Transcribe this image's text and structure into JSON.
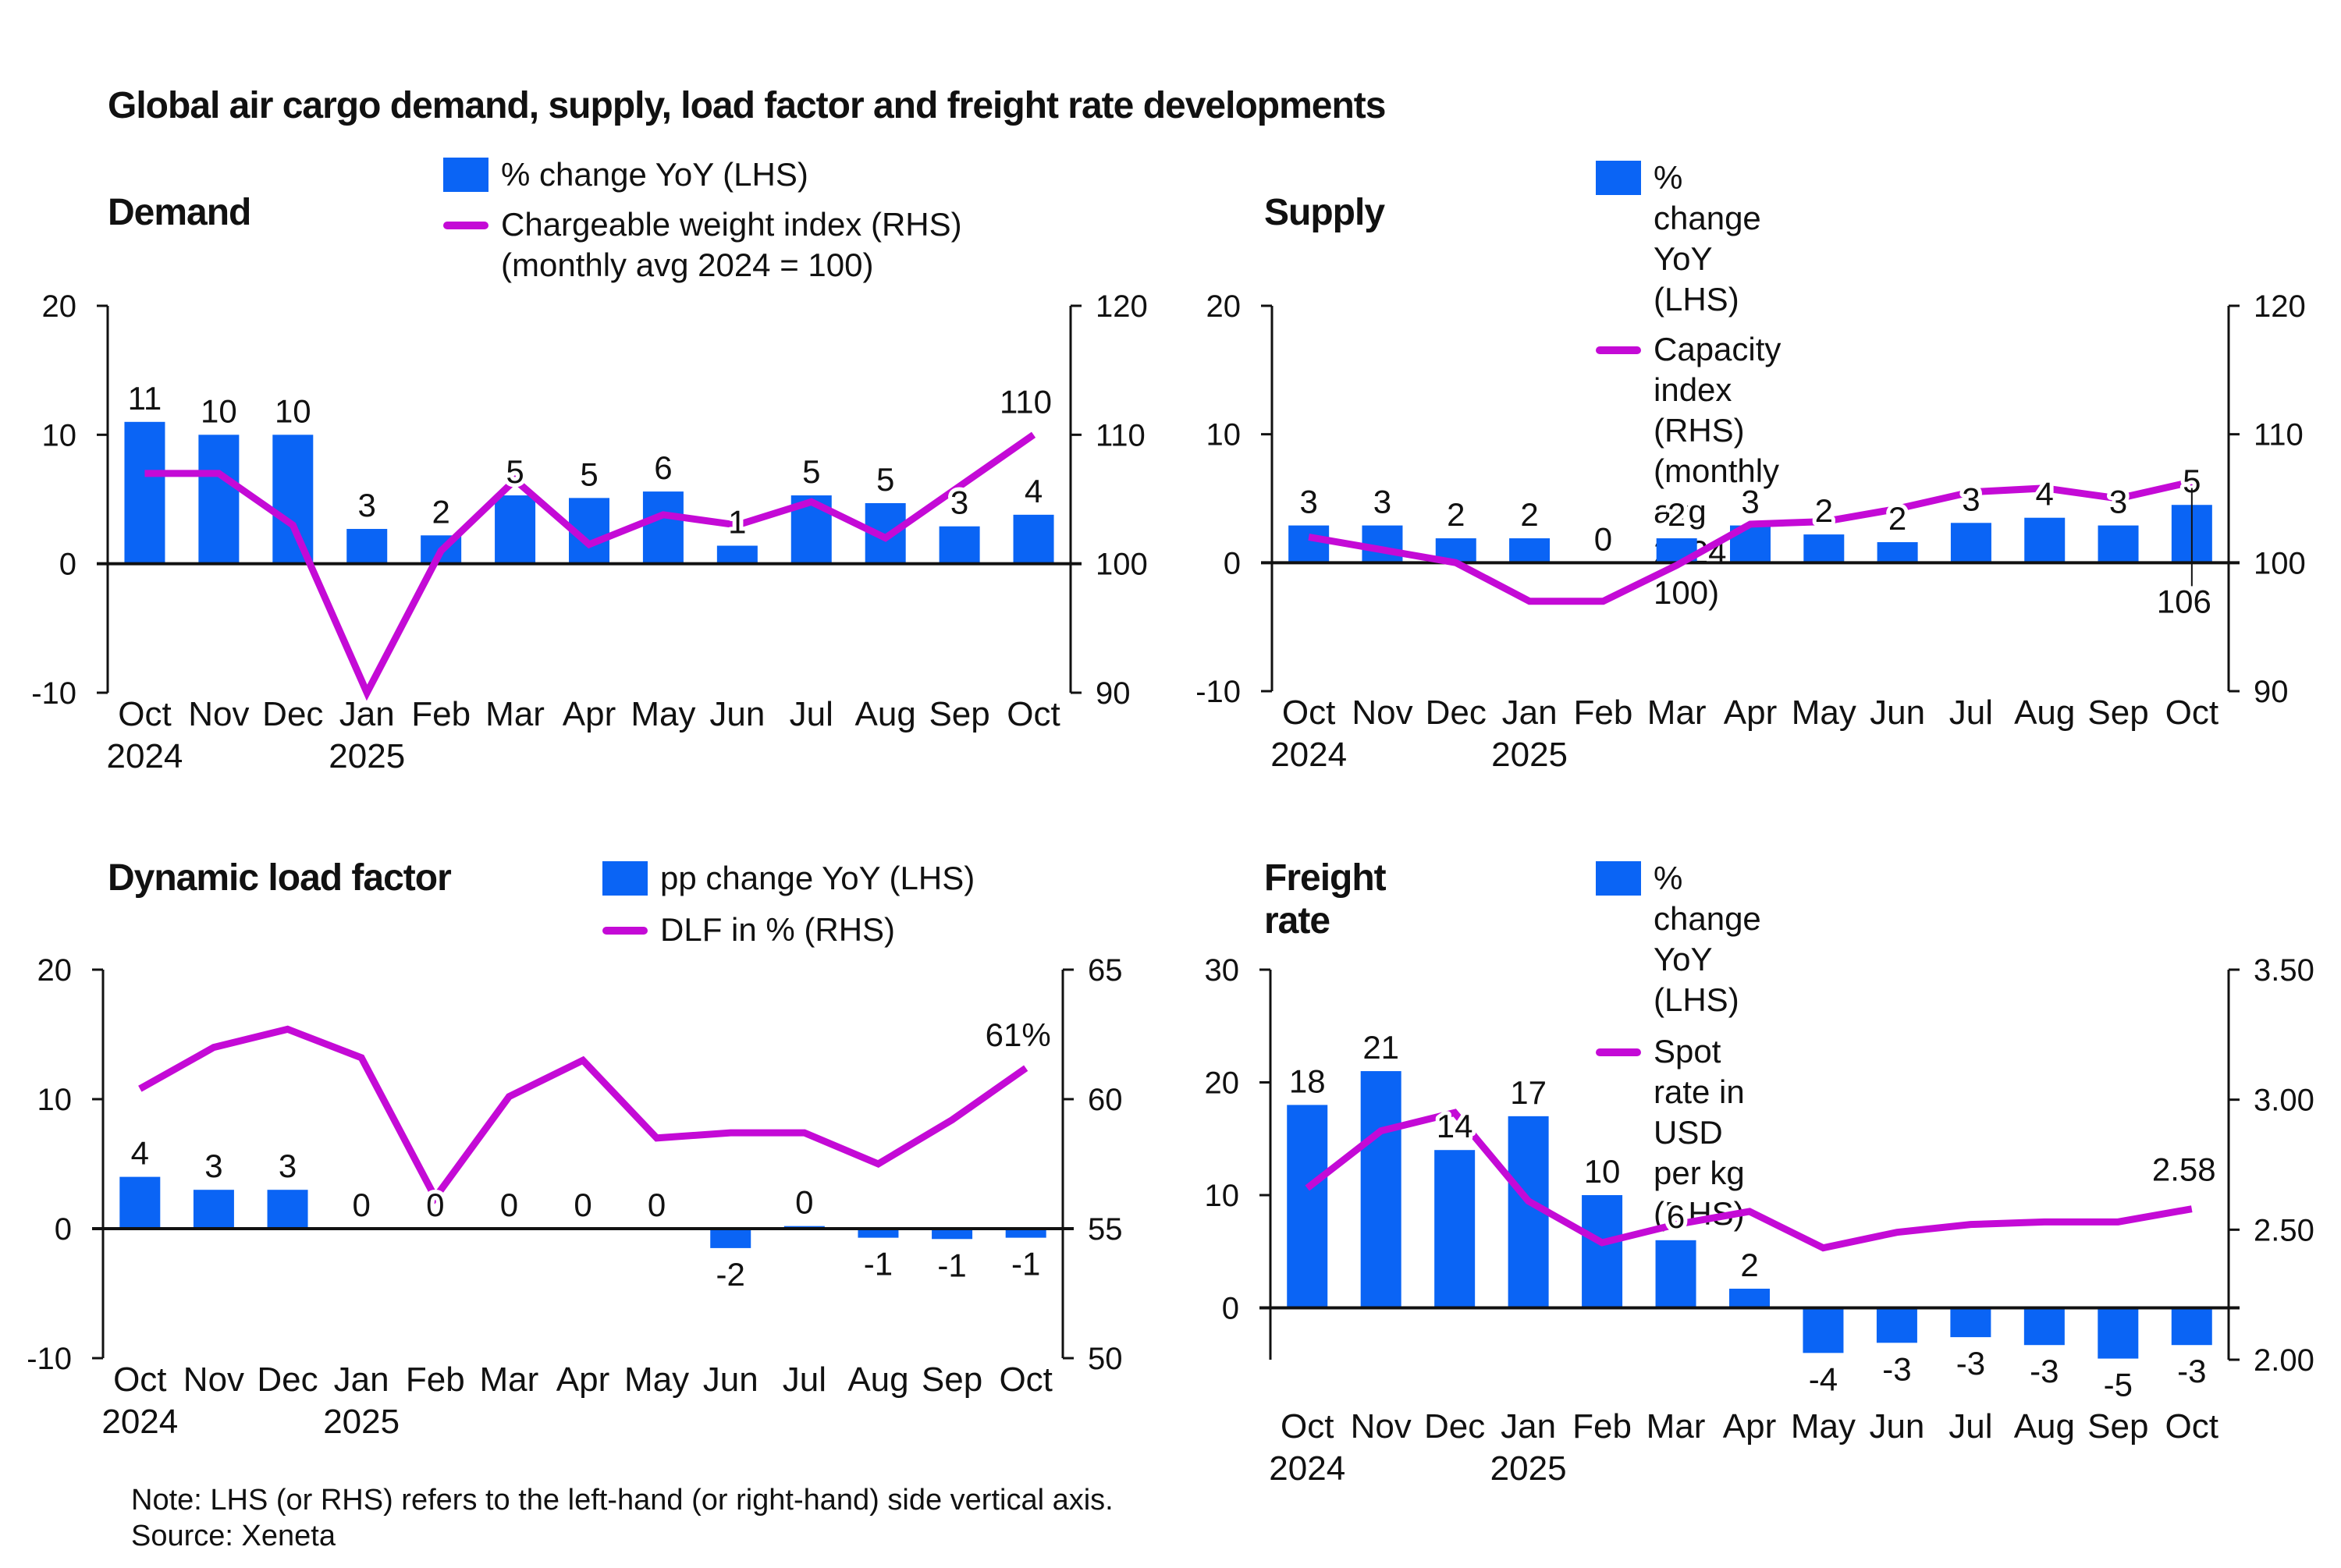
{
  "title": "Global air cargo demand, supply, load factor and freight rate developments",
  "footnote": {
    "note": "Note: LHS (or RHS) refers to the left-hand (or right-hand) side vertical axis.",
    "source": "Source: Xeneta"
  },
  "colors": {
    "bar": "#0a64f5",
    "line": "#c40ad6",
    "axis": "#111111"
  },
  "chart_data": [
    {
      "id": "demand",
      "type": "bar+line",
      "title": "Demand",
      "legend": [
        "% change YoY (LHS)",
        "Chargeable weight index (RHS)\n(monthly avg 2024 = 100)"
      ],
      "categories": [
        "Oct",
        "Nov",
        "Dec",
        "Jan",
        "Feb",
        "Mar",
        "Apr",
        "May",
        "Jun",
        "Jul",
        "Aug",
        "Sep",
        "Oct"
      ],
      "year_labels": {
        "0": "2024",
        "3": "2025"
      },
      "left_axis": {
        "min": -10,
        "max": 20,
        "ticks": [
          -10,
          0,
          10,
          20
        ],
        "tick_labels": [
          "-10",
          "0",
          "10",
          "20"
        ]
      },
      "right_axis": {
        "min": 90,
        "max": 120,
        "ticks": [
          90,
          100,
          110,
          120
        ],
        "tick_labels": [
          "90",
          "100",
          "110",
          "120"
        ]
      },
      "series": [
        {
          "name": "% change YoY (LHS)",
          "type": "bar",
          "axis": "left",
          "values": [
            11,
            10,
            10,
            2.7,
            2.2,
            5.3,
            5.1,
            5.6,
            1.4,
            5.3,
            4.7,
            2.9,
            3.8
          ],
          "labels": [
            "11",
            "10",
            "10",
            "3",
            "2",
            "5",
            "5",
            "6",
            "1",
            "5",
            "5",
            "3",
            "4"
          ]
        },
        {
          "name": "Chargeable weight index (RHS)",
          "type": "line",
          "axis": "right",
          "values": [
            107,
            107,
            103,
            90,
            101,
            106.5,
            101.5,
            103.8,
            103,
            104.8,
            102,
            106,
            110
          ],
          "end_label": "110"
        }
      ]
    },
    {
      "id": "supply",
      "type": "bar+line",
      "title": "Supply",
      "legend": [
        "% change YoY (LHS)",
        "Capacity index (RHS)\n(monthly avg 2024 = 100)"
      ],
      "categories": [
        "Oct",
        "Nov",
        "Dec",
        "Jan",
        "Feb",
        "Mar",
        "Apr",
        "May",
        "Jun",
        "Jul",
        "Aug",
        "Sep",
        "Oct"
      ],
      "year_labels": {
        "0": "2024",
        "3": "2025"
      },
      "left_axis": {
        "min": -10,
        "max": 20,
        "ticks": [
          -10,
          0,
          10,
          20
        ],
        "tick_labels": [
          "-10",
          "0",
          "10",
          "20"
        ]
      },
      "right_axis": {
        "min": 90,
        "max": 120,
        "ticks": [
          90,
          100,
          110,
          120
        ],
        "tick_labels": [
          "90",
          "100",
          "110",
          "120"
        ]
      },
      "series": [
        {
          "name": "% change YoY (LHS)",
          "type": "bar",
          "axis": "left",
          "values": [
            2.9,
            2.9,
            1.9,
            1.9,
            0,
            1.9,
            2.9,
            2.2,
            1.6,
            3.1,
            3.5,
            2.9,
            4.5
          ],
          "labels": [
            "3",
            "3",
            "2",
            "2",
            "0",
            "2",
            "3",
            "2",
            "2",
            "3",
            "4",
            "3",
            "5"
          ]
        },
        {
          "name": "Capacity index (RHS)",
          "type": "line",
          "axis": "right",
          "values": [
            102,
            101,
            100,
            97,
            97,
            99.8,
            103,
            103.2,
            104.2,
            105.5,
            105.8,
            105,
            106.3
          ],
          "end_label": "106"
        }
      ]
    },
    {
      "id": "load-factor",
      "type": "bar+line",
      "title": "Dynamic load factor",
      "legend": [
        "pp change YoY (LHS)",
        "DLF in % (RHS)"
      ],
      "categories": [
        "Oct",
        "Nov",
        "Dec",
        "Jan",
        "Feb",
        "Mar",
        "Apr",
        "May",
        "Jun",
        "Jul",
        "Aug",
        "Sep",
        "Oct"
      ],
      "year_labels": {
        "0": "2024",
        "3": "2025"
      },
      "left_axis": {
        "min": -10,
        "max": 20,
        "ticks": [
          -10,
          0,
          10,
          20
        ],
        "tick_labels": [
          "-10",
          "0",
          "10",
          "20"
        ]
      },
      "right_axis": {
        "min": 50,
        "max": 65,
        "ticks": [
          50,
          55,
          60,
          65
        ],
        "tick_labels": [
          "50",
          "55",
          "60",
          "65"
        ]
      },
      "series": [
        {
          "name": "pp change YoY (LHS)",
          "type": "bar",
          "axis": "left",
          "values": [
            4,
            3,
            3,
            0,
            0,
            0,
            0,
            0,
            -1.5,
            0.2,
            -0.7,
            -0.8,
            -0.7
          ],
          "labels": [
            "4",
            "3",
            "3",
            "0",
            "0",
            "0",
            "0",
            "0",
            "-2",
            "0",
            "-1",
            "-1",
            "-1"
          ]
        },
        {
          "name": "DLF in % (RHS)",
          "type": "line",
          "axis": "right",
          "values": [
            60.4,
            62,
            62.7,
            61.6,
            56.2,
            60.1,
            61.5,
            58.5,
            58.7,
            58.7,
            57.5,
            59.2,
            61.2
          ],
          "end_label": "61%"
        }
      ]
    },
    {
      "id": "freight-rate",
      "type": "bar+line",
      "title": "Freight rate",
      "legend": [
        "% change YoY (LHS)",
        "Spot rate in USD per kg (RHS)"
      ],
      "categories": [
        "Oct",
        "Nov",
        "Dec",
        "Jan",
        "Feb",
        "Mar",
        "Apr",
        "May",
        "Jun",
        "Jul",
        "Aug",
        "Sep",
        "Oct"
      ],
      "year_labels": {
        "0": "2024",
        "3": "2025"
      },
      "left_axis": {
        "min": -4.6,
        "max": 30,
        "ticks": [
          0,
          10,
          20,
          30
        ],
        "tick_labels": [
          "0",
          "10",
          "20",
          "30"
        ]
      },
      "right_axis": {
        "min": 2.0,
        "max": 3.5,
        "ticks": [
          2.0,
          2.5,
          3.0,
          3.5
        ],
        "tick_labels": [
          "2.00",
          "2.50",
          "3.00",
          "3.50"
        ]
      },
      "series": [
        {
          "name": "% change YoY (LHS)",
          "type": "bar",
          "axis": "left",
          "values": [
            18,
            21,
            14,
            17,
            10,
            6,
            1.7,
            -4,
            -3.1,
            -2.6,
            -3.3,
            -4.5,
            -3.3
          ],
          "labels": [
            "18",
            "21",
            "14",
            "17",
            "10",
            "6",
            "2",
            "-4",
            "-3",
            "-3",
            "-3",
            "-5",
            "-3"
          ]
        },
        {
          "name": "Spot rate in USD per kg (RHS)",
          "type": "line",
          "axis": "right",
          "values": [
            2.66,
            2.88,
            2.95,
            2.61,
            2.45,
            2.52,
            2.57,
            2.43,
            2.49,
            2.52,
            2.53,
            2.53,
            2.58
          ],
          "end_label": "2.58"
        }
      ]
    }
  ]
}
